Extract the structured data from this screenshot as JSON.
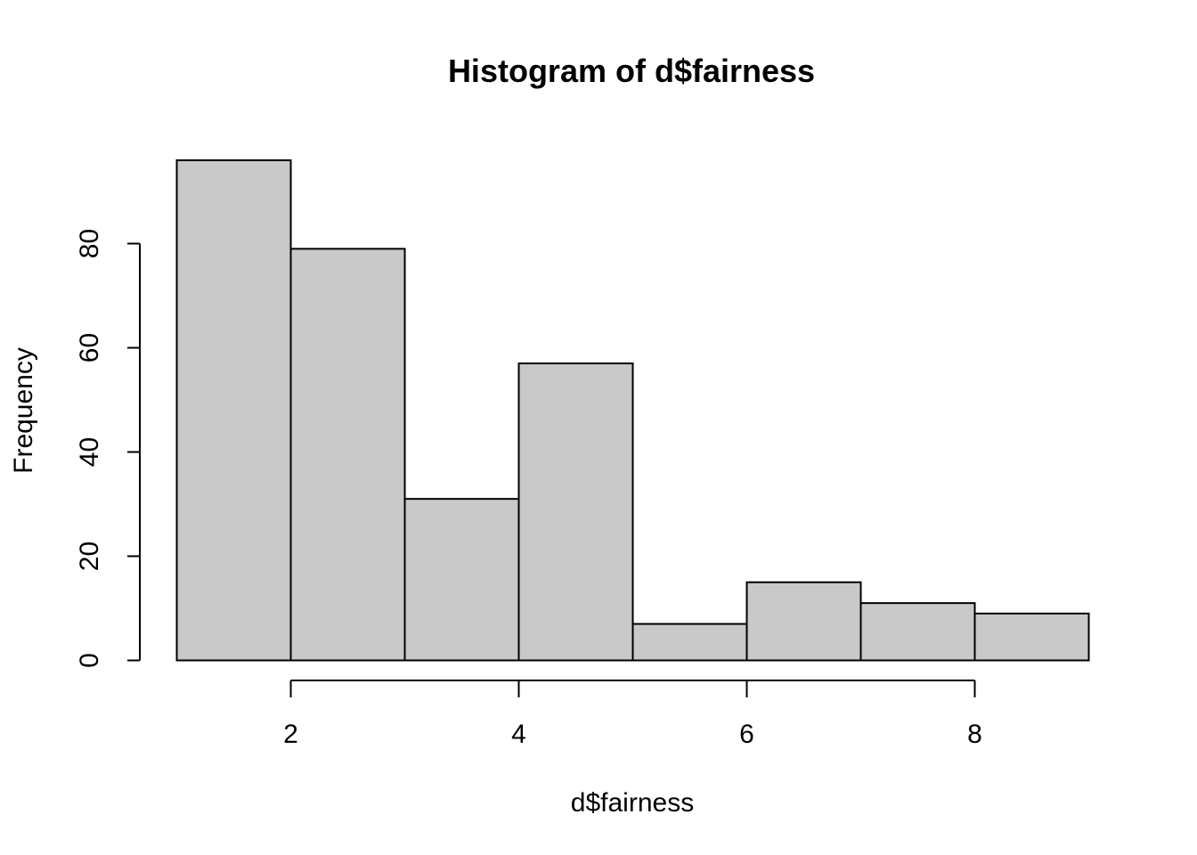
{
  "chart_data": {
    "type": "bar",
    "histogram": true,
    "title": "Histogram of d$fairness",
    "xlabel": "d$fairness",
    "ylabel": "Frequency",
    "bins": [
      {
        "x0": 1,
        "x1": 2,
        "value": 96
      },
      {
        "x0": 2,
        "x1": 3,
        "value": 79
      },
      {
        "x0": 3,
        "x1": 4,
        "value": 31
      },
      {
        "x0": 4,
        "x1": 5,
        "value": 57
      },
      {
        "x0": 5,
        "x1": 6,
        "value": 7
      },
      {
        "x0": 6,
        "x1": 7,
        "value": 15
      },
      {
        "x0": 7,
        "x1": 8,
        "value": 11
      },
      {
        "x0": 8,
        "x1": 9,
        "value": 9
      }
    ],
    "xlim": [
      1,
      9
    ],
    "ylim": [
      0,
      96
    ],
    "x_ticks": [
      2,
      4,
      6,
      8
    ],
    "y_ticks": [
      0,
      20,
      40,
      60,
      80
    ],
    "x_tick_labels": [
      "2",
      "4",
      "6",
      "8"
    ],
    "y_tick_labels": [
      "0",
      "20",
      "40",
      "60",
      "80"
    ],
    "bar_fill": "#c9c9c9",
    "bar_stroke": "#000000",
    "grid": false,
    "legend": "none"
  }
}
